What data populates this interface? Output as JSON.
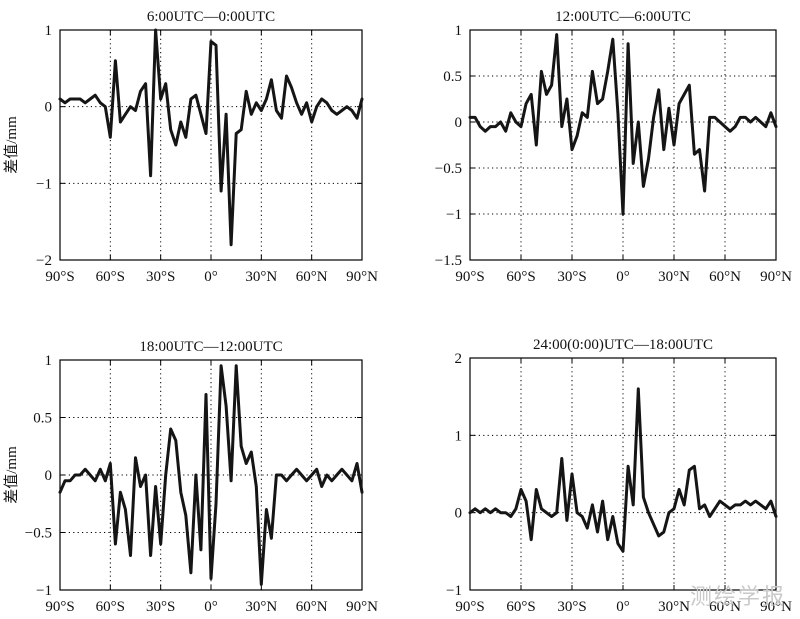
{
  "watermark": "测绘学报",
  "x_tick_labels": [
    "90°S",
    "60°S",
    "30°S",
    "0°",
    "30°N",
    "60°N",
    "90°N"
  ],
  "ylabel": "差值/mm",
  "chart_data": [
    {
      "type": "line",
      "title": "6:00UTC—0:00UTC",
      "xlabel": "",
      "ylabel": "差值/mm",
      "xlim": [
        -90,
        90
      ],
      "ylim": [
        -2,
        1
      ],
      "y_ticks": [
        1,
        0,
        -1,
        -2
      ],
      "grid": true,
      "x": [
        -90,
        -87,
        -84,
        -81,
        -78,
        -75,
        -72,
        -69,
        -66,
        -63,
        -60,
        -57,
        -54,
        -51,
        -48,
        -45,
        -42,
        -39,
        -36,
        -33,
        -30,
        -27,
        -24,
        -21,
        -18,
        -15,
        -12,
        -9,
        -6,
        -3,
        0,
        3,
        6,
        9,
        12,
        15,
        18,
        21,
        24,
        27,
        30,
        33,
        36,
        39,
        42,
        45,
        48,
        51,
        54,
        57,
        60,
        63,
        66,
        69,
        72,
        75,
        78,
        81,
        84,
        87,
        90
      ],
      "y": [
        0.1,
        0.05,
        0.1,
        0.1,
        0.1,
        0.05,
        0.1,
        0.15,
        0.05,
        0.0,
        -0.4,
        0.6,
        -0.2,
        -0.1,
        0.0,
        -0.05,
        0.2,
        0.3,
        -0.9,
        1.0,
        0.1,
        0.3,
        -0.3,
        -0.5,
        -0.2,
        -0.4,
        0.1,
        0.15,
        -0.1,
        -0.35,
        0.85,
        0.8,
        -1.1,
        -0.1,
        -1.8,
        -0.35,
        -0.3,
        0.2,
        -0.1,
        0.05,
        -0.05,
        0.1,
        0.35,
        -0.05,
        -0.15,
        0.4,
        0.25,
        0.05,
        -0.1,
        0.05,
        -0.2,
        0.0,
        0.1,
        0.05,
        -0.05,
        -0.1,
        -0.05,
        0.0,
        -0.05,
        -0.15,
        0.1
      ]
    },
    {
      "type": "line",
      "title": "12:00UTC—6:00UTC",
      "xlabel": "",
      "ylabel": "",
      "xlim": [
        -90,
        90
      ],
      "ylim": [
        -1.5,
        1
      ],
      "y_ticks": [
        1,
        0.5,
        0,
        -0.5,
        -1,
        -1.5
      ],
      "grid": true,
      "x": [
        -90,
        -87,
        -84,
        -81,
        -78,
        -75,
        -72,
        -69,
        -66,
        -63,
        -60,
        -57,
        -54,
        -51,
        -48,
        -45,
        -42,
        -39,
        -36,
        -33,
        -30,
        -27,
        -24,
        -21,
        -18,
        -15,
        -12,
        -9,
        -6,
        -3,
        0,
        3,
        6,
        9,
        12,
        15,
        18,
        21,
        24,
        27,
        30,
        33,
        36,
        39,
        42,
        45,
        48,
        51,
        54,
        57,
        60,
        63,
        66,
        69,
        72,
        75,
        78,
        81,
        84,
        87,
        90
      ],
      "y": [
        0.05,
        0.05,
        -0.05,
        -0.1,
        -0.05,
        -0.05,
        0.0,
        -0.1,
        0.1,
        0.0,
        -0.05,
        0.2,
        0.3,
        -0.25,
        0.55,
        0.3,
        0.4,
        0.95,
        -0.05,
        0.25,
        -0.3,
        -0.15,
        0.1,
        0.05,
        0.55,
        0.2,
        0.25,
        0.55,
        0.9,
        0.1,
        -1.0,
        0.85,
        -0.45,
        0.0,
        -0.7,
        -0.4,
        0.05,
        0.35,
        -0.3,
        0.15,
        -0.25,
        0.2,
        0.3,
        0.4,
        -0.35,
        -0.3,
        -0.75,
        0.05,
        0.05,
        0.0,
        -0.05,
        -0.1,
        -0.05,
        0.05,
        0.05,
        0.0,
        0.05,
        0.0,
        -0.05,
        0.1,
        -0.05
      ]
    },
    {
      "type": "line",
      "title": "18:00UTC—12:00UTC",
      "xlabel": "",
      "ylabel": "差值/mm",
      "xlim": [
        -90,
        90
      ],
      "ylim": [
        -1,
        1
      ],
      "y_ticks": [
        1,
        0.5,
        0,
        -0.5,
        -1
      ],
      "grid": true,
      "x": [
        -90,
        -87,
        -84,
        -81,
        -78,
        -75,
        -72,
        -69,
        -66,
        -63,
        -60,
        -57,
        -54,
        -51,
        -48,
        -45,
        -42,
        -39,
        -36,
        -33,
        -30,
        -27,
        -24,
        -21,
        -18,
        -15,
        -12,
        -9,
        -6,
        -3,
        0,
        3,
        6,
        9,
        12,
        15,
        18,
        21,
        24,
        27,
        30,
        33,
        36,
        39,
        42,
        45,
        48,
        51,
        54,
        57,
        60,
        63,
        66,
        69,
        72,
        75,
        78,
        81,
        84,
        87,
        90
      ],
      "y": [
        -0.15,
        -0.05,
        -0.05,
        0.0,
        0.0,
        0.05,
        0.0,
        -0.05,
        0.05,
        -0.05,
        0.1,
        -0.6,
        -0.15,
        -0.3,
        -0.7,
        0.15,
        -0.1,
        0.0,
        -0.7,
        -0.1,
        -0.6,
        0.0,
        0.4,
        0.3,
        -0.15,
        -0.35,
        -0.85,
        0.0,
        -0.65,
        0.7,
        -0.9,
        -0.25,
        0.95,
        0.6,
        -0.05,
        0.95,
        0.25,
        0.1,
        0.2,
        -0.1,
        -0.95,
        -0.3,
        -0.55,
        0.0,
        0.0,
        -0.05,
        0.0,
        0.05,
        0.0,
        -0.05,
        0.0,
        0.05,
        -0.1,
        0.0,
        -0.05,
        0.0,
        0.05,
        0.0,
        -0.05,
        0.1,
        -0.15
      ]
    },
    {
      "type": "line",
      "title": "24:00(0:00)UTC—18:00UTC",
      "xlabel": "",
      "ylabel": "",
      "xlim": [
        -90,
        90
      ],
      "ylim": [
        -1,
        2
      ],
      "y_ticks": [
        2,
        1,
        0,
        -1
      ],
      "grid": true,
      "x": [
        -90,
        -87,
        -84,
        -81,
        -78,
        -75,
        -72,
        -69,
        -66,
        -63,
        -60,
        -57,
        -54,
        -51,
        -48,
        -45,
        -42,
        -39,
        -36,
        -33,
        -30,
        -27,
        -24,
        -21,
        -18,
        -15,
        -12,
        -9,
        -6,
        -3,
        0,
        3,
        6,
        9,
        12,
        15,
        18,
        21,
        24,
        27,
        30,
        33,
        36,
        39,
        42,
        45,
        48,
        51,
        54,
        57,
        60,
        63,
        66,
        69,
        72,
        75,
        78,
        81,
        84,
        87,
        90
      ],
      "y": [
        0.0,
        0.05,
        0.0,
        0.05,
        0.0,
        0.05,
        0.0,
        0.0,
        -0.05,
        0.05,
        0.3,
        0.15,
        -0.35,
        0.3,
        0.05,
        0.0,
        -0.05,
        0.0,
        0.7,
        -0.1,
        0.5,
        0.0,
        -0.05,
        -0.2,
        0.1,
        -0.25,
        0.15,
        -0.35,
        -0.05,
        -0.4,
        -0.5,
        0.6,
        0.1,
        1.6,
        0.2,
        0.0,
        -0.15,
        -0.3,
        -0.25,
        0.0,
        0.05,
        0.3,
        0.1,
        0.55,
        0.6,
        0.05,
        0.1,
        -0.05,
        0.05,
        0.15,
        0.1,
        0.05,
        0.1,
        0.1,
        0.15,
        0.1,
        0.15,
        0.1,
        0.05,
        0.15,
        -0.05
      ]
    }
  ]
}
